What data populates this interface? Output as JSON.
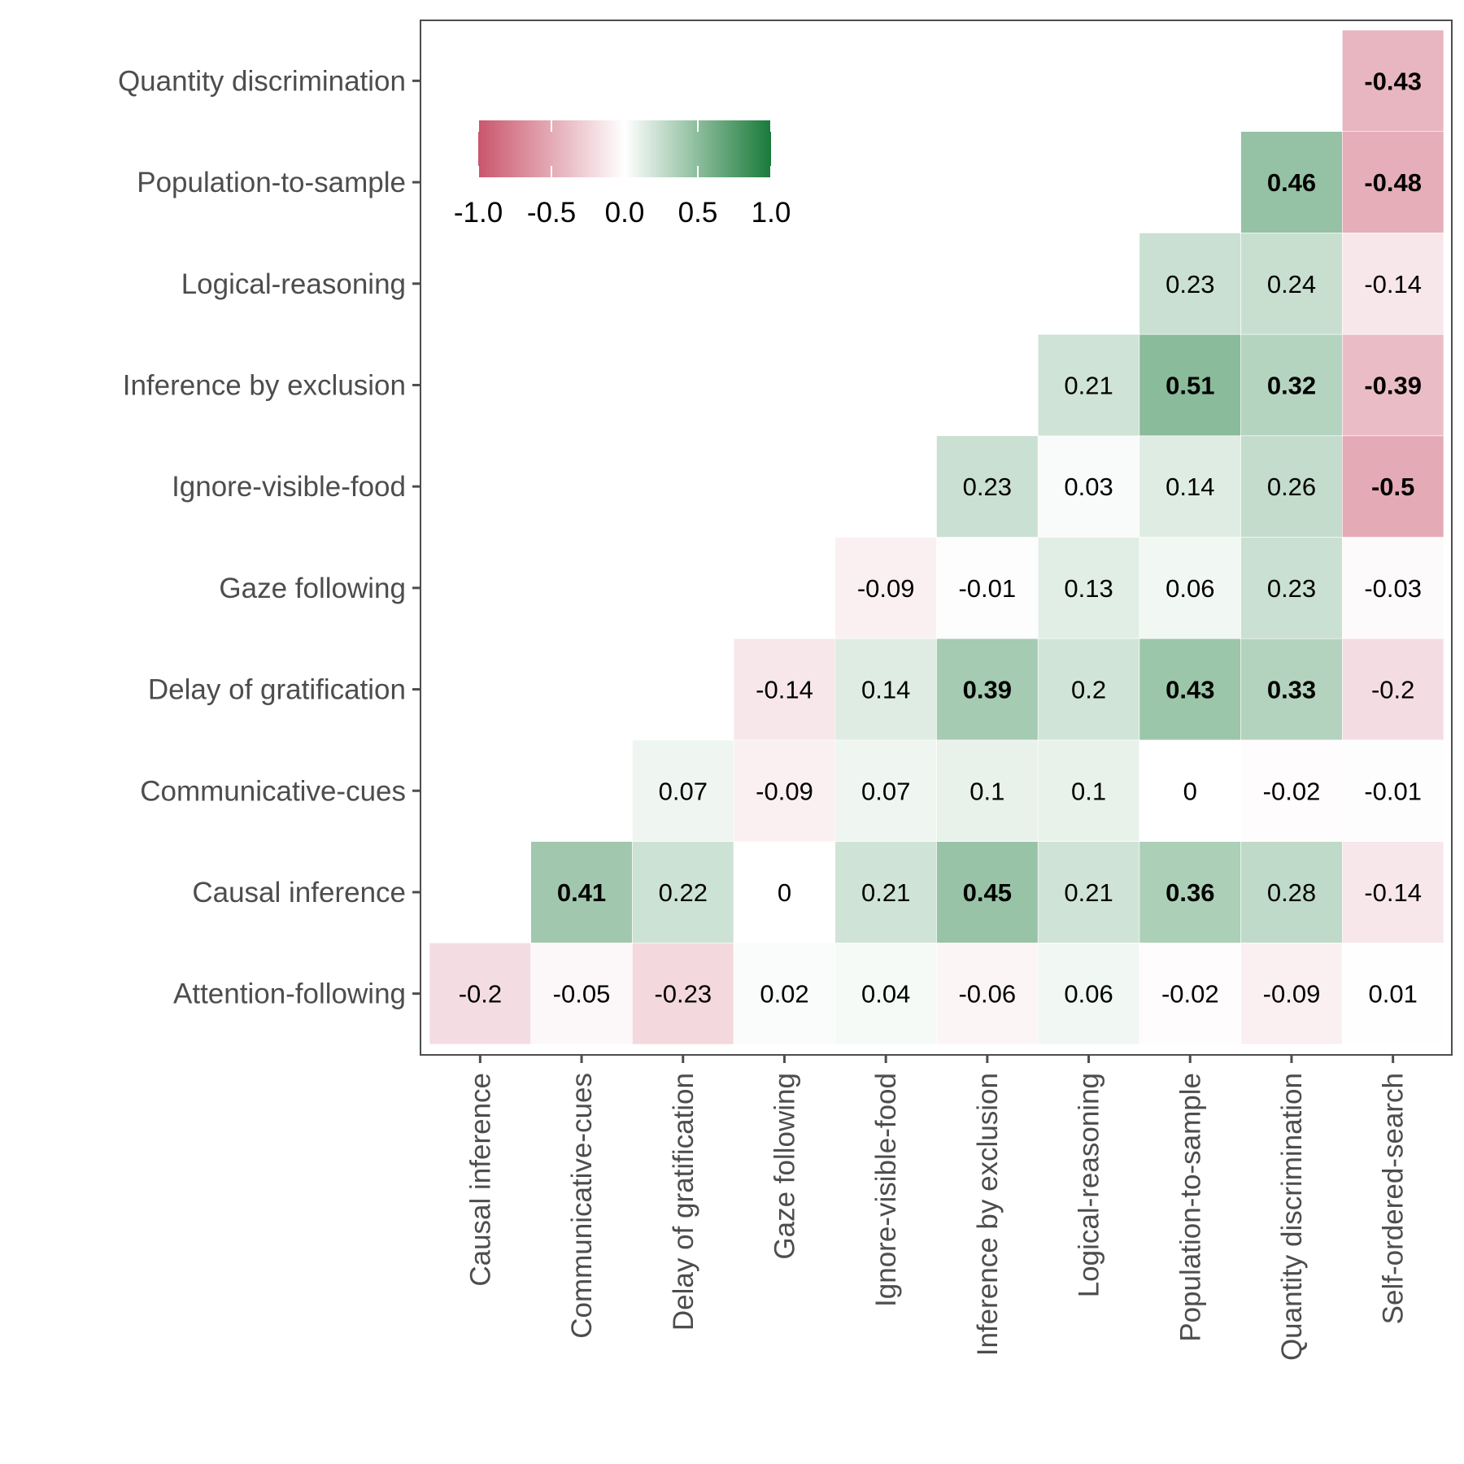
{
  "chart_data": {
    "type": "heatmap",
    "title": "",
    "xlabel": "",
    "ylabel": "",
    "x_categories": [
      "Causal inference",
      "Communicative-cues",
      "Delay of gratification",
      "Gaze following",
      "Ignore-visible-food",
      "Inference by exclusion",
      "Logical-reasoning",
      "Population-to-sample",
      "Quantity discrimination",
      "Self-ordered-search"
    ],
    "y_categories": [
      "Attention-following",
      "Causal inference",
      "Communicative-cues",
      "Delay of gratification",
      "Gaze following",
      "Ignore-visible-food",
      "Inference by exclusion",
      "Logical-reasoning",
      "Population-to-sample",
      "Quantity discrimination"
    ],
    "values": [
      [
        -0.2,
        -0.05,
        -0.23,
        0.02,
        0.04,
        -0.06,
        0.06,
        -0.02,
        -0.09,
        0.01
      ],
      [
        null,
        0.41,
        0.22,
        0,
        0.21,
        0.45,
        0.21,
        0.36,
        0.28,
        -0.14
      ],
      [
        null,
        null,
        0.07,
        -0.09,
        0.07,
        0.1,
        0.1,
        0,
        -0.02,
        -0.01
      ],
      [
        null,
        null,
        null,
        -0.14,
        0.14,
        0.39,
        0.2,
        0.43,
        0.33,
        -0.2
      ],
      [
        null,
        null,
        null,
        null,
        -0.09,
        -0.01,
        0.13,
        0.06,
        0.23,
        -0.03
      ],
      [
        null,
        null,
        null,
        null,
        null,
        0.23,
        0.03,
        0.14,
        0.26,
        -0.5
      ],
      [
        null,
        null,
        null,
        null,
        null,
        null,
        0.21,
        0.51,
        0.32,
        -0.39
      ],
      [
        null,
        null,
        null,
        null,
        null,
        null,
        null,
        0.23,
        0.24,
        -0.14
      ],
      [
        null,
        null,
        null,
        null,
        null,
        null,
        null,
        null,
        0.46,
        -0.48
      ],
      [
        null,
        null,
        null,
        null,
        null,
        null,
        null,
        null,
        null,
        -0.43
      ]
    ],
    "bold": [
      [
        false,
        false,
        false,
        false,
        false,
        false,
        false,
        false,
        false,
        false
      ],
      [
        false,
        true,
        false,
        false,
        false,
        true,
        false,
        true,
        false,
        false
      ],
      [
        false,
        false,
        false,
        false,
        false,
        false,
        false,
        false,
        false,
        false
      ],
      [
        false,
        false,
        false,
        false,
        false,
        true,
        false,
        true,
        true,
        false
      ],
      [
        false,
        false,
        false,
        false,
        false,
        false,
        false,
        false,
        false,
        false
      ],
      [
        false,
        false,
        false,
        false,
        false,
        false,
        false,
        false,
        false,
        true
      ],
      [
        false,
        false,
        false,
        false,
        false,
        false,
        false,
        true,
        true,
        true
      ],
      [
        false,
        false,
        false,
        false,
        false,
        false,
        false,
        false,
        false,
        false
      ],
      [
        false,
        false,
        false,
        false,
        false,
        false,
        false,
        false,
        true,
        true
      ],
      [
        false,
        false,
        false,
        false,
        false,
        false,
        false,
        false,
        false,
        true
      ]
    ],
    "color_scale": {
      "low": "#c9566c",
      "mid": "#ffffff",
      "high": "#197a3a",
      "range": [
        -1.0,
        1.0
      ]
    },
    "legend": {
      "placement": "inside-top-left",
      "orientation": "horizontal",
      "ticks": [
        "-1.0",
        "-0.5",
        "0.0",
        "0.5",
        "1.0"
      ],
      "tick_values": [
        -1.0,
        -0.5,
        0.0,
        0.5,
        1.0
      ]
    },
    "grid": false
  }
}
